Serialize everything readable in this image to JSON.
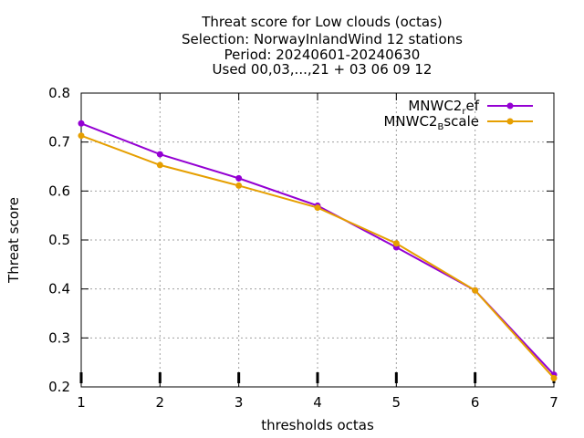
{
  "chart_data": {
    "type": "line",
    "title_lines": [
      "Threat score  for Low clouds (octas)",
      "Selection: NorwayInlandWind     12 stations",
      "Period: 20240601-20240630",
      "Used 00,03,...,21 + 03 06 09 12"
    ],
    "xlabel": "thresholds octas",
    "ylabel": "Threat score",
    "x": [
      1,
      2,
      3,
      4,
      5,
      6,
      7
    ],
    "xlim": [
      1,
      7
    ],
    "ylim": [
      0.2,
      0.8
    ],
    "xticks": [
      "1",
      "2",
      "3",
      "4",
      "5",
      "6",
      "7"
    ],
    "yticks": [
      "0.2",
      "0.3",
      "0.4",
      "0.5",
      "0.6",
      "0.7",
      "0.8"
    ],
    "grid": true,
    "legend_position": "top-right",
    "series": [
      {
        "name": "MNWC2_ref",
        "legend_main": "MNWC2",
        "legend_sub": "r",
        "legend_tail": "ef",
        "color": "#9400d3",
        "values": [
          0.738,
          0.675,
          0.626,
          0.57,
          0.485,
          0.397,
          0.225
        ]
      },
      {
        "name": "MNWC2_Bscale",
        "legend_main": "MNWC2",
        "legend_sub": "B",
        "legend_tail": "scale",
        "color": "#e69f00",
        "values": [
          0.713,
          0.653,
          0.611,
          0.566,
          0.493,
          0.397,
          0.218
        ]
      }
    ]
  }
}
